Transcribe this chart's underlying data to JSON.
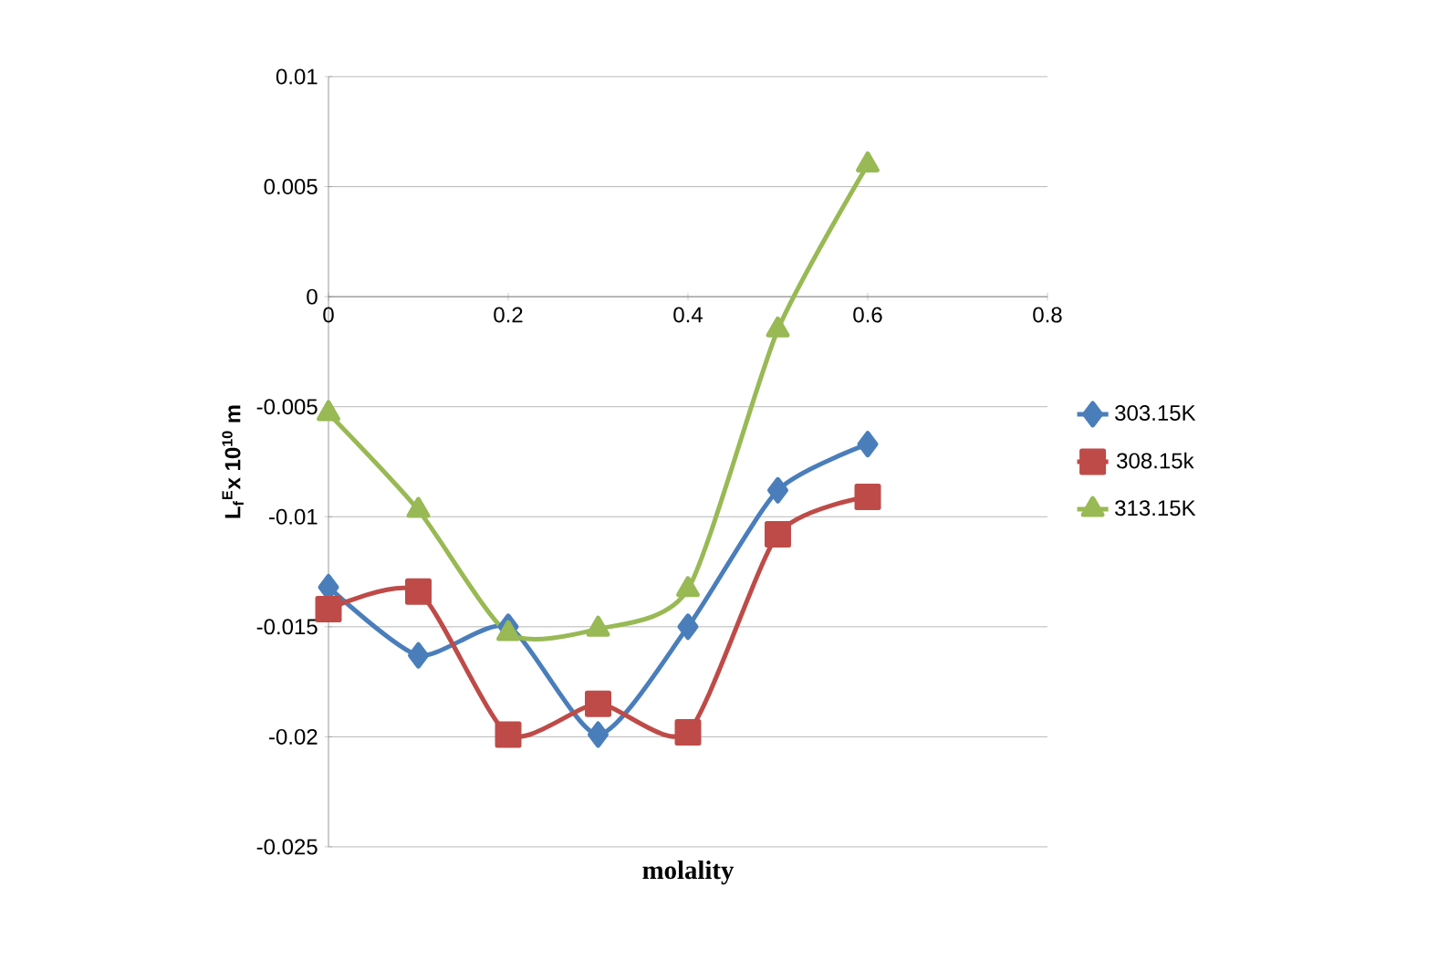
{
  "chart_data": {
    "type": "line",
    "xlabel": "molality",
    "ylabel": "L$_{f}$$^{E}$x 10$^{10}$ m",
    "x": [
      0,
      0.1,
      0.2,
      0.3,
      0.4,
      0.5,
      0.6
    ],
    "series": [
      {
        "name": "303.15K",
        "color": "#4a7ebb",
        "marker": "diamond",
        "values": [
          -0.0132,
          -0.0163,
          -0.015,
          -0.0199,
          -0.015,
          -0.0088,
          -0.0067
        ]
      },
      {
        "name": "308.15k",
        "color": "#be4b48",
        "marker": "square",
        "values": [
          -0.0142,
          -0.0134,
          -0.0199,
          -0.0185,
          -0.0198,
          -0.0108,
          -0.0091
        ]
      },
      {
        "name": "313.15K",
        "color": "#98b954",
        "marker": "triangle",
        "values": [
          -0.0053,
          -0.0097,
          -0.0153,
          -0.0151,
          -0.0133,
          -0.0015,
          0.006
        ]
      }
    ],
    "xlim": [
      0,
      0.8
    ],
    "xticks": [
      0,
      0.2,
      0.4,
      0.6,
      0.8
    ],
    "ylim": [
      -0.025,
      0.01
    ],
    "yticks": [
      -0.025,
      -0.02,
      -0.015,
      -0.01,
      -0.005,
      0,
      0.005,
      0.01
    ],
    "grid": "y",
    "legend": "right",
    "line_style": "solid"
  }
}
